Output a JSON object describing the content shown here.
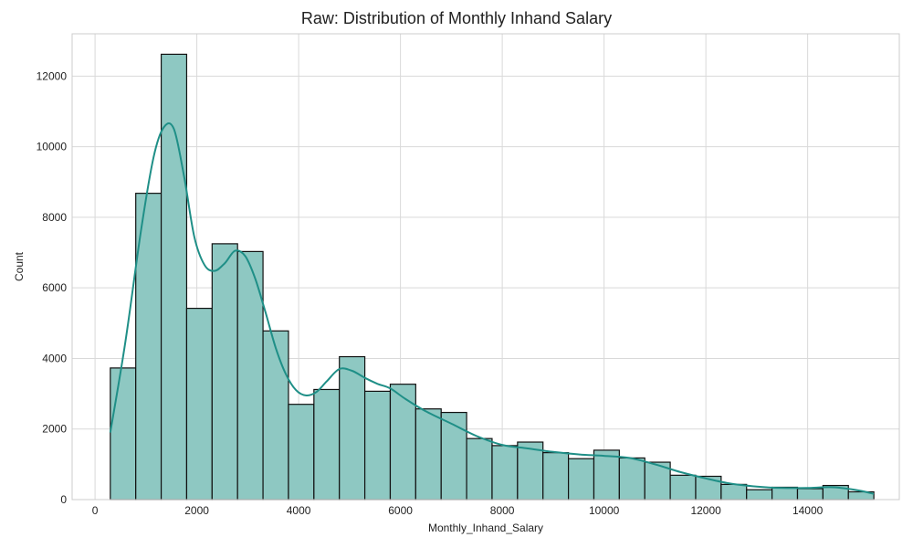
{
  "chart_data": {
    "type": "histogram",
    "title": "Raw: Distribution of Monthly Inhand Salary",
    "xlabel": "Monthly_Inhand_Salary",
    "ylabel": "Count",
    "xlim": [
      -450,
      15800
    ],
    "ylim": [
      0,
      13200
    ],
    "x_ticks": [
      0,
      2000,
      4000,
      6000,
      8000,
      10000,
      12000,
      14000
    ],
    "y_ticks": [
      0,
      2000,
      4000,
      6000,
      8000,
      10000,
      12000
    ],
    "grid": true,
    "colors": {
      "bar_fill": "#8ec8c2",
      "bar_edge": "#111111",
      "kde": "#1f8f87",
      "grid": "#d9d9d9",
      "frame": "#cccccc"
    },
    "bins": [
      {
        "x0": 300,
        "x1": 800,
        "count": 3730
      },
      {
        "x0": 800,
        "x1": 1300,
        "count": 8680
      },
      {
        "x0": 1300,
        "x1": 1800,
        "count": 12620
      },
      {
        "x0": 1800,
        "x1": 2300,
        "count": 5420
      },
      {
        "x0": 2300,
        "x1": 2800,
        "count": 7250
      },
      {
        "x0": 2800,
        "x1": 3300,
        "count": 7030
      },
      {
        "x0": 3300,
        "x1": 3800,
        "count": 4780
      },
      {
        "x0": 3800,
        "x1": 4300,
        "count": 2700
      },
      {
        "x0": 4300,
        "x1": 4800,
        "count": 3120
      },
      {
        "x0": 4800,
        "x1": 5300,
        "count": 4050
      },
      {
        "x0": 5300,
        "x1": 5800,
        "count": 3070
      },
      {
        "x0": 5800,
        "x1": 6300,
        "count": 3270
      },
      {
        "x0": 6300,
        "x1": 6800,
        "count": 2570
      },
      {
        "x0": 6800,
        "x1": 7300,
        "count": 2470
      },
      {
        "x0": 7300,
        "x1": 7800,
        "count": 1730
      },
      {
        "x0": 7800,
        "x1": 8300,
        "count": 1530
      },
      {
        "x0": 8300,
        "x1": 8800,
        "count": 1630
      },
      {
        "x0": 8800,
        "x1": 9300,
        "count": 1330
      },
      {
        "x0": 9300,
        "x1": 9800,
        "count": 1160
      },
      {
        "x0": 9800,
        "x1": 10300,
        "count": 1400
      },
      {
        "x0": 10300,
        "x1": 10800,
        "count": 1180
      },
      {
        "x0": 10800,
        "x1": 11300,
        "count": 1060
      },
      {
        "x0": 11300,
        "x1": 11800,
        "count": 690
      },
      {
        "x0": 11800,
        "x1": 12300,
        "count": 660
      },
      {
        "x0": 12300,
        "x1": 12800,
        "count": 430
      },
      {
        "x0": 12800,
        "x1": 13300,
        "count": 280
      },
      {
        "x0": 13300,
        "x1": 13800,
        "count": 350
      },
      {
        "x0": 13800,
        "x1": 14300,
        "count": 310
      },
      {
        "x0": 14300,
        "x1": 14800,
        "count": 400
      },
      {
        "x0": 14800,
        "x1": 15300,
        "count": 220
      }
    ],
    "kde": {
      "x": [
        300,
        600,
        900,
        1150,
        1350,
        1550,
        1750,
        1950,
        2150,
        2350,
        2550,
        2750,
        2950,
        3150,
        3350,
        3550,
        3750,
        3950,
        4150,
        4350,
        4550,
        4800,
        5050,
        5300,
        5550,
        5800,
        6100,
        6500,
        7000,
        7500,
        8000,
        8500,
        9000,
        9500,
        10000,
        10500,
        11000,
        11500,
        12000,
        12500,
        13000,
        13500,
        14000,
        14500,
        15000,
        15300
      ],
      "y": [
        1900,
        4500,
        7600,
        9700,
        10550,
        10500,
        9150,
        7450,
        6650,
        6480,
        6700,
        7050,
        6900,
        6250,
        5300,
        4300,
        3550,
        3100,
        2950,
        3050,
        3350,
        3700,
        3650,
        3450,
        3280,
        3150,
        2850,
        2500,
        2150,
        1800,
        1550,
        1450,
        1350,
        1280,
        1240,
        1180,
        1000,
        780,
        600,
        450,
        370,
        330,
        330,
        350,
        260,
        160
      ]
    }
  }
}
